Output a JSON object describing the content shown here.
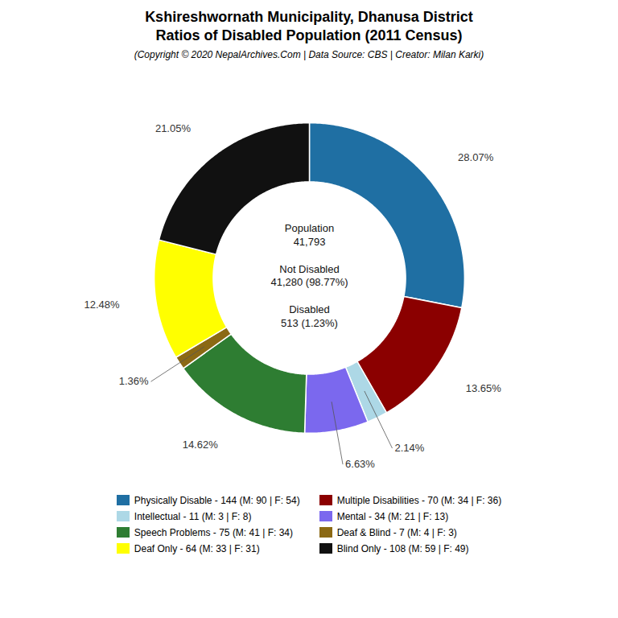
{
  "chart_data": {
    "type": "donut",
    "title": "Kshireshwornath Municipality, Dhanusa District\nRatios of Disabled Population (2011 Census)",
    "subtitle": "(Copyright © 2020 NepalArchives.Com | Data Source: CBS | Creator: Milan Karki)",
    "categories": [
      "Physically Disable - 144 (M: 90 | F: 54)",
      "Multiple Disabilities - 70 (M: 34 | F: 36)",
      "Intellectual - 11 (M: 3 | F: 8)",
      "Mental - 34 (M: 21 | F: 13)",
      "Speech Problems - 75 (M: 41 | F: 34)",
      "Deaf & Blind - 7 (M: 4 | F: 3)",
      "Deaf Only - 64 (M: 33 | F: 31)",
      "Blind Only - 108 (M: 59 | F: 49)"
    ],
    "values": [
      28.07,
      13.65,
      2.14,
      6.63,
      14.62,
      1.36,
      12.48,
      21.05
    ],
    "value_labels": [
      "28.07%",
      "13.65%",
      "2.14%",
      "6.63%",
      "14.62%",
      "1.36%",
      "12.48%",
      "21.05%"
    ],
    "colors": [
      "#1f6fa3",
      "#8b0000",
      "#add8e6",
      "#7b68ee",
      "#2e7d32",
      "#8b6914",
      "#ffff00",
      "#111111"
    ],
    "data_labels": true,
    "legend": "bottom",
    "annotations": [
      "Population\n41,793\n\nNot Disabled\n41,280 (98.77%)\n\nDisabled\n513 (1.23%)"
    ]
  }
}
